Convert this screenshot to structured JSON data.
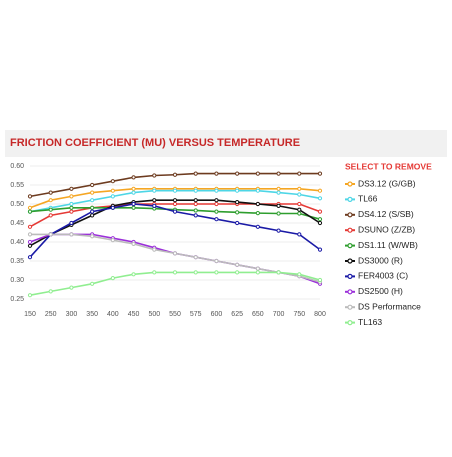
{
  "chart_data": {
    "type": "line",
    "title": "FRICTION COEFFICIENT (MU) VERSUS TEMPERATURE",
    "legend_title": "SELECT TO REMOVE",
    "categories": [
      150,
      250,
      300,
      350,
      400,
      450,
      500,
      550,
      575,
      600,
      625,
      650,
      700,
      750,
      800
    ],
    "ylim": [
      0.25,
      0.6
    ],
    "yticks": [
      {
        "value": 0.6,
        "label": "0.60"
      },
      0.55,
      {
        "value": 0.5,
        "label": "0.50"
      },
      0.45,
      {
        "value": 0.4,
        "label": "0.40"
      },
      0.35,
      {
        "value": 0.3,
        "label": "0.30"
      },
      0.25
    ],
    "grid": true,
    "series": [
      {
        "name": "DS3.12 (G/GB)",
        "color": "#f5a623",
        "values": [
          0.49,
          0.51,
          0.52,
          0.53,
          0.535,
          0.54,
          0.54,
          0.54,
          0.54,
          0.54,
          0.54,
          0.54,
          0.54,
          0.54,
          0.535
        ]
      },
      {
        "name": "TL66",
        "color": "#4dd6e6",
        "values": [
          0.48,
          0.49,
          0.5,
          0.51,
          0.52,
          0.53,
          0.535,
          0.535,
          0.535,
          0.535,
          0.535,
          0.535,
          0.53,
          0.525,
          0.515
        ]
      },
      {
        "name": "DS4.12 (S/SB)",
        "color": "#6d3b1f",
        "values": [
          0.52,
          0.53,
          0.54,
          0.55,
          0.56,
          0.57,
          0.575,
          0.577,
          0.58,
          0.58,
          0.58,
          0.58,
          0.58,
          0.58,
          0.58
        ]
      },
      {
        "name": "DSUNO (Z/ZB)",
        "color": "#e53935",
        "values": [
          0.44,
          0.47,
          0.48,
          0.49,
          0.495,
          0.5,
          0.5,
          0.5,
          0.5,
          0.5,
          0.5,
          0.5,
          0.5,
          0.5,
          0.48
        ]
      },
      {
        "name": "DS1.11 (W/WB)",
        "color": "#2e9e2e",
        "values": [
          0.48,
          0.485,
          0.49,
          0.49,
          0.49,
          0.49,
          0.488,
          0.485,
          0.483,
          0.48,
          0.478,
          0.476,
          0.475,
          0.475,
          0.46
        ]
      },
      {
        "name": "DS3000 (R)",
        "color": "#111111",
        "values": [
          0.39,
          0.42,
          0.445,
          0.47,
          0.495,
          0.505,
          0.51,
          0.51,
          0.51,
          0.51,
          0.505,
          0.5,
          0.495,
          0.485,
          0.45
        ]
      },
      {
        "name": "FER4003 (C)",
        "color": "#1a1aa6",
        "values": [
          0.36,
          0.42,
          0.45,
          0.48,
          0.49,
          0.5,
          0.495,
          0.48,
          0.47,
          0.46,
          0.45,
          0.44,
          0.43,
          0.42,
          0.38
        ]
      },
      {
        "name": "DS2500 (H)",
        "color": "#9b30d9",
        "values": [
          0.4,
          0.42,
          0.42,
          0.42,
          0.41,
          0.4,
          0.385,
          0.37,
          0.36,
          0.35,
          0.34,
          0.33,
          0.32,
          0.31,
          0.29
        ]
      },
      {
        "name": "DS Performance",
        "color": "#bbbbbb",
        "values": [
          0.42,
          0.42,
          0.42,
          0.415,
          0.405,
          0.395,
          0.38,
          0.37,
          0.36,
          0.35,
          0.34,
          0.33,
          0.32,
          0.31,
          0.295
        ]
      },
      {
        "name": "TL163",
        "color": "#90ee90",
        "values": [
          0.26,
          0.27,
          0.28,
          0.29,
          0.305,
          0.315,
          0.32,
          0.32,
          0.32,
          0.32,
          0.32,
          0.32,
          0.32,
          0.315,
          0.3
        ]
      }
    ]
  }
}
